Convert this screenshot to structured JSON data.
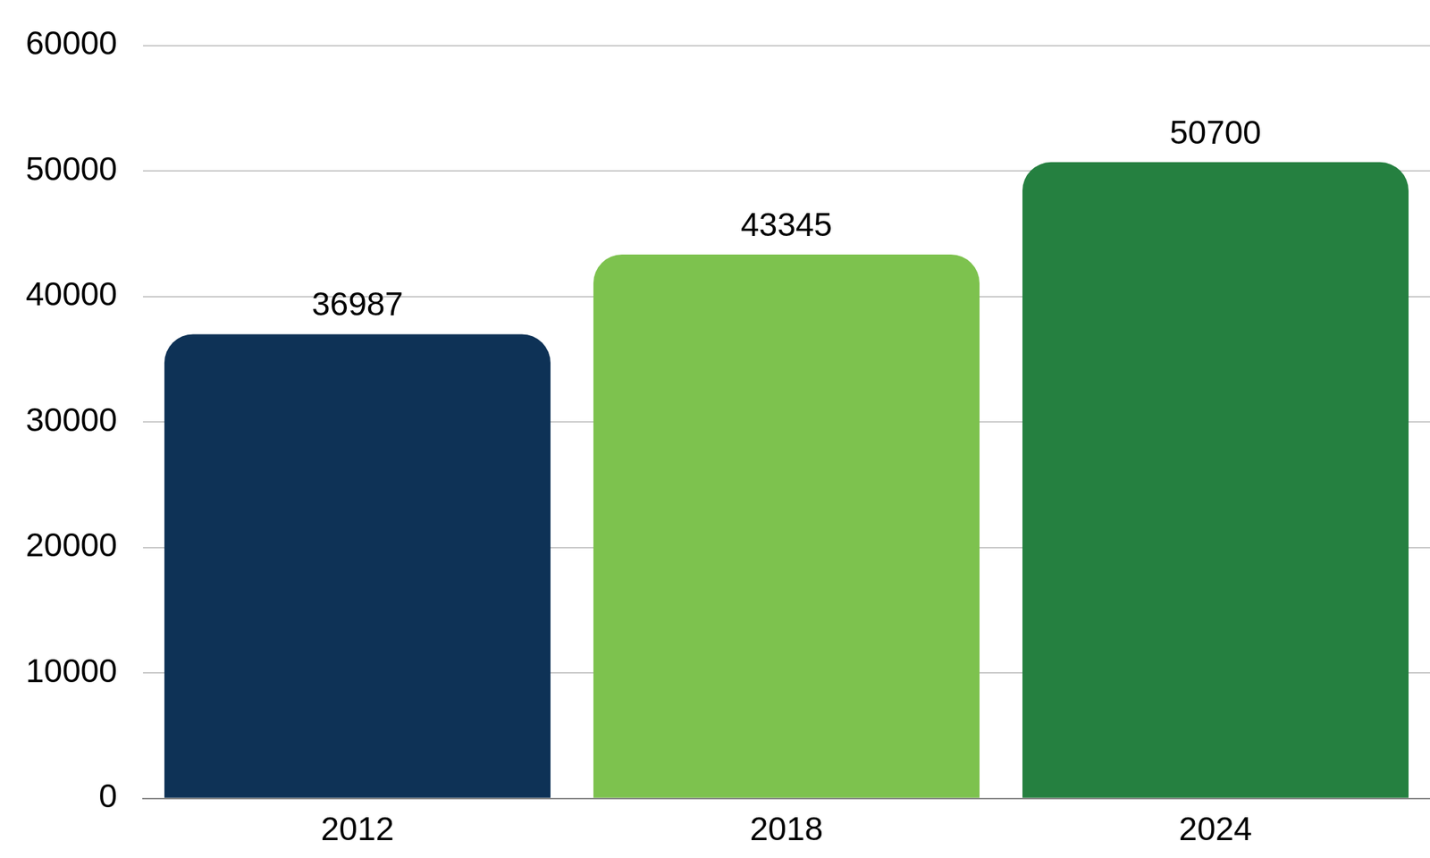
{
  "chart_data": {
    "type": "bar",
    "categories": [
      "2012",
      "2018",
      "2024"
    ],
    "values": [
      36987,
      43345,
      50700
    ],
    "colors": [
      "#0e3256",
      "#7dc24e",
      "#258040"
    ],
    "ylim": [
      0,
      60000
    ],
    "yticks": [
      0,
      10000,
      20000,
      30000,
      40000,
      50000,
      60000
    ],
    "grid": true,
    "data_labels": true
  }
}
